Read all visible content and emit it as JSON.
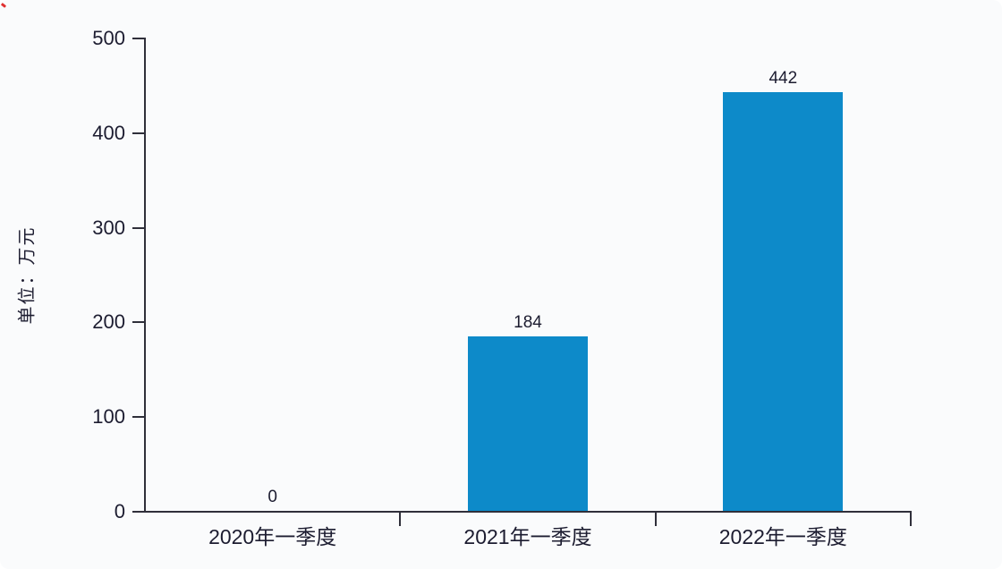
{
  "page": {
    "background": "#fafbfc",
    "corner_artifact_color": "#e03131"
  },
  "chart_data": {
    "type": "bar",
    "title": "",
    "xlabel": "",
    "ylabel": "单位：万元",
    "categories": [
      "2020年一季度",
      "2021年一季度",
      "2022年一季度"
    ],
    "values": [
      0,
      184,
      442
    ],
    "value_labels": [
      "0",
      "184",
      "442"
    ],
    "y_ticks": [
      0,
      100,
      200,
      300,
      400,
      500
    ],
    "ylim": [
      0,
      500
    ],
    "grid": false,
    "legend": false,
    "bar_color": "#0d8ac9",
    "axis_color": "#2f2f3a",
    "text_color": "#1c1c30"
  }
}
